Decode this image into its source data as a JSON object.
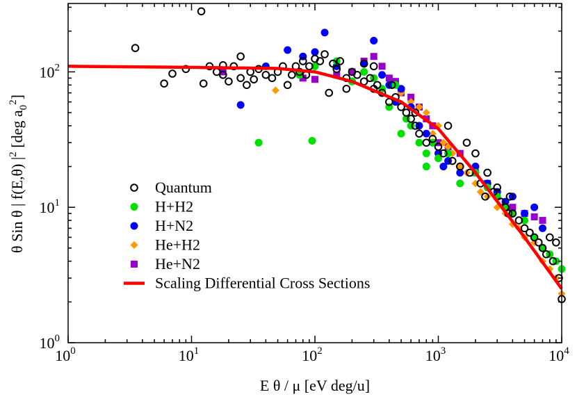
{
  "chart_data": {
    "type": "scatter",
    "xscale": "log",
    "yscale": "log",
    "xlim": [
      1,
      10000
    ],
    "ylim": [
      1,
      320
    ],
    "xticks": [
      1,
      10,
      100,
      1000,
      10000
    ],
    "yticks": [
      1,
      10,
      100
    ],
    "xtick_labels": [
      {
        "base": "10",
        "exp": "0"
      },
      {
        "base": "10",
        "exp": "1"
      },
      {
        "base": "10",
        "exp": "2"
      },
      {
        "base": "10",
        "exp": "3"
      },
      {
        "base": "10",
        "exp": "4"
      }
    ],
    "ytick_labels": [
      {
        "base": "10",
        "exp": "0"
      },
      {
        "base": "10",
        "exp": "1"
      },
      {
        "base": "10",
        "exp": "2"
      }
    ],
    "xlabel": "E θ / μ [eV deg/u]",
    "ylabel": {
      "main": "θ Sin θ | f(E,θ) |",
      "sup": "2",
      "unit": " [deg a",
      "sub": "0",
      "sup2": "2",
      "close": "]"
    },
    "legend_position": "lower-left",
    "grid": false,
    "series": [
      {
        "name": "Quantum",
        "marker": "open-circle",
        "color": "#000000",
        "points": [
          [
            3.5,
            150
          ],
          [
            6,
            82
          ],
          [
            7,
            97
          ],
          [
            9,
            105
          ],
          [
            12,
            280
          ],
          [
            12.5,
            82
          ],
          [
            14,
            110
          ],
          [
            16,
            100
          ],
          [
            18,
            112
          ],
          [
            18,
            95
          ],
          [
            20,
            85
          ],
          [
            22,
            110
          ],
          [
            25,
            130
          ],
          [
            25,
            90
          ],
          [
            28,
            80
          ],
          [
            30,
            100
          ],
          [
            32,
            88
          ],
          [
            35,
            105
          ],
          [
            40,
            95
          ],
          [
            45,
            90
          ],
          [
            50,
            100
          ],
          [
            55,
            110
          ],
          [
            60,
            80
          ],
          [
            65,
            95
          ],
          [
            70,
            110
          ],
          [
            75,
            100
          ],
          [
            80,
            120
          ],
          [
            85,
            95
          ],
          [
            90,
            110
          ],
          [
            100,
            125
          ],
          [
            110,
            120
          ],
          [
            120,
            135
          ],
          [
            130,
            70
          ],
          [
            140,
            115
          ],
          [
            150,
            105
          ],
          [
            160,
            120
          ],
          [
            180,
            90
          ],
          [
            200,
            100
          ],
          [
            220,
            95
          ],
          [
            250,
            85
          ],
          [
            280,
            90
          ],
          [
            300,
            75
          ],
          [
            320,
            80
          ],
          [
            350,
            70
          ],
          [
            400,
            60
          ],
          [
            420,
            80
          ],
          [
            450,
            65
          ],
          [
            500,
            55
          ],
          [
            550,
            50
          ],
          [
            600,
            45
          ],
          [
            650,
            40
          ],
          [
            700,
            35
          ],
          [
            800,
            30
          ],
          [
            900,
            32
          ],
          [
            1000,
            28
          ],
          [
            1100,
            25
          ],
          [
            1200,
            40
          ],
          [
            1300,
            22
          ],
          [
            1500,
            20
          ],
          [
            1700,
            30
          ],
          [
            1800,
            18
          ],
          [
            2000,
            25
          ],
          [
            2200,
            15
          ],
          [
            2500,
            18
          ],
          [
            2800,
            13
          ],
          [
            3000,
            14
          ],
          [
            3200,
            11
          ],
          [
            3500,
            10
          ],
          [
            3800,
            12
          ],
          [
            4000,
            9
          ],
          [
            4500,
            8
          ],
          [
            5000,
            7
          ],
          [
            5500,
            6.5
          ],
          [
            6000,
            6
          ],
          [
            6500,
            5.5
          ],
          [
            7000,
            5
          ],
          [
            7500,
            4.5
          ],
          [
            8000,
            6
          ],
          [
            8500,
            4
          ],
          [
            9000,
            5.5
          ],
          [
            9500,
            3
          ],
          [
            10000,
            2.1
          ],
          [
            250,
            115
          ],
          [
            300,
            110
          ],
          [
            180,
            75
          ],
          [
            650,
            50
          ],
          [
            2400,
            12
          ],
          [
            3700,
            9
          ]
        ]
      },
      {
        "name": "H+H2",
        "marker": "filled-circle",
        "color": "#00e000",
        "points": [
          [
            35,
            30
          ],
          [
            95,
            31
          ],
          [
            75,
            95
          ],
          [
            100,
            110
          ],
          [
            150,
            120
          ],
          [
            200,
            85
          ],
          [
            250,
            100
          ],
          [
            300,
            90
          ],
          [
            350,
            75
          ],
          [
            400,
            55
          ],
          [
            450,
            80
          ],
          [
            500,
            35
          ],
          [
            550,
            45
          ],
          [
            600,
            40
          ],
          [
            700,
            30
          ],
          [
            800,
            25
          ],
          [
            900,
            30
          ],
          [
            1000,
            23
          ],
          [
            1200,
            25
          ],
          [
            1500,
            15
          ],
          [
            2000,
            18
          ],
          [
            2500,
            14
          ],
          [
            3000,
            12
          ],
          [
            3500,
            10
          ],
          [
            4000,
            9
          ],
          [
            5000,
            8
          ],
          [
            6000,
            6
          ],
          [
            7000,
            5
          ],
          [
            8000,
            4.5
          ],
          [
            9000,
            4
          ],
          [
            10000,
            3.5
          ],
          [
            800,
            20
          ]
        ]
      },
      {
        "name": "H+N2",
        "marker": "filled-circle",
        "color": "#0000ff",
        "points": [
          [
            25,
            57
          ],
          [
            40,
            110
          ],
          [
            60,
            145
          ],
          [
            80,
            130
          ],
          [
            100,
            140
          ],
          [
            120,
            195
          ],
          [
            150,
            110
          ],
          [
            200,
            85
          ],
          [
            250,
            115
          ],
          [
            300,
            170
          ],
          [
            350,
            95
          ],
          [
            400,
            80
          ],
          [
            450,
            60
          ],
          [
            500,
            75
          ],
          [
            600,
            55
          ],
          [
            700,
            40
          ],
          [
            800,
            35
          ],
          [
            900,
            30
          ],
          [
            1000,
            25
          ],
          [
            1200,
            22
          ],
          [
            1500,
            18
          ],
          [
            2000,
            20
          ],
          [
            2500,
            15
          ],
          [
            3000,
            13
          ],
          [
            3500,
            11
          ],
          [
            4000,
            12
          ],
          [
            5000,
            9
          ],
          [
            6000,
            10
          ],
          [
            7000,
            7
          ],
          [
            1100,
            20
          ]
        ]
      },
      {
        "name": "He+H2",
        "marker": "diamond",
        "color": "#ff9900",
        "points": [
          [
            48,
            73
          ],
          [
            500,
            70
          ],
          [
            600,
            60
          ],
          [
            700,
            55
          ],
          [
            800,
            50
          ],
          [
            900,
            35
          ],
          [
            1000,
            40
          ],
          [
            1100,
            30
          ],
          [
            1200,
            28
          ],
          [
            1300,
            25
          ],
          [
            1500,
            20
          ],
          [
            1700,
            18
          ],
          [
            2000,
            15
          ],
          [
            2200,
            13
          ],
          [
            2500,
            12
          ],
          [
            3000,
            10
          ],
          [
            3500,
            9
          ],
          [
            4000,
            7.5
          ],
          [
            4500,
            7
          ],
          [
            5000,
            6
          ],
          [
            6000,
            5.5
          ],
          [
            7000,
            4
          ],
          [
            8000,
            3.5
          ],
          [
            9000,
            3
          ],
          [
            10000,
            2.3
          ]
        ]
      },
      {
        "name": "He+N2",
        "marker": "filled-square",
        "color": "#9900cc",
        "points": [
          [
            18,
            100
          ],
          [
            80,
            90
          ],
          [
            100,
            88
          ],
          [
            150,
            95
          ],
          [
            200,
            100
          ],
          [
            250,
            120
          ],
          [
            300,
            130
          ],
          [
            350,
            110
          ],
          [
            400,
            90
          ],
          [
            450,
            85
          ],
          [
            500,
            70
          ],
          [
            600,
            65
          ],
          [
            700,
            55
          ],
          [
            800,
            45
          ],
          [
            900,
            40
          ],
          [
            1000,
            30
          ],
          [
            1200,
            28
          ],
          [
            1500,
            25
          ],
          [
            2000,
            18
          ],
          [
            2500,
            15
          ],
          [
            3000,
            12
          ],
          [
            4000,
            10
          ],
          [
            5000,
            9
          ],
          [
            6000,
            8.5
          ],
          [
            7000,
            8
          ]
        ]
      },
      {
        "name": "Scaling Differential Cross Sections",
        "marker": "line",
        "color": "#ff0000",
        "points": [
          [
            1,
            110
          ],
          [
            10,
            108
          ],
          [
            50,
            106
          ],
          [
            100,
            100
          ],
          [
            200,
            85
          ],
          [
            500,
            60
          ],
          [
            1000,
            38
          ],
          [
            2000,
            18
          ],
          [
            5000,
            6
          ],
          [
            10000,
            2.5
          ]
        ]
      }
    ]
  }
}
